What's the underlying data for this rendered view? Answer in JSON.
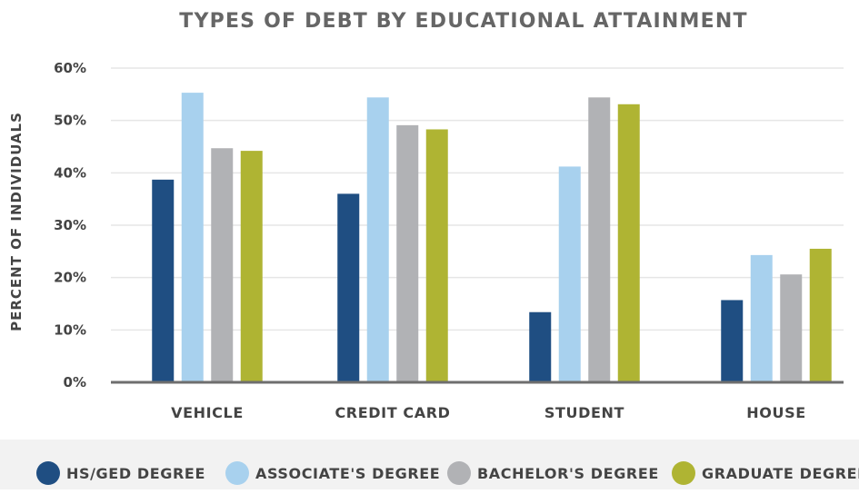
{
  "chart_data": {
    "type": "bar",
    "title": "TYPES OF DEBT BY EDUCATIONAL ATTAINMENT",
    "xlabel": "",
    "ylabel": "PERCENT OF INDIVIDUALS",
    "ylim": [
      0,
      60
    ],
    "yticks": [
      0,
      10,
      20,
      30,
      40,
      50,
      60
    ],
    "ytick_labels": [
      "0%",
      "10%",
      "20%",
      "30%",
      "40%",
      "50%",
      "60%"
    ],
    "grid": true,
    "legend_position": "bottom",
    "categories": [
      "VEHICLE",
      "CREDIT CARD",
      "STUDENT",
      "HOUSE"
    ],
    "series": [
      {
        "name": "HS/GED DEGREE",
        "color": "#1f4e82",
        "values": [
          38.7,
          36.0,
          13.4,
          15.7
        ]
      },
      {
        "name": "ASSOCIATE'S DEGREE",
        "color": "#a8d1ee",
        "values": [
          55.3,
          54.4,
          41.2,
          24.3
        ]
      },
      {
        "name": "BACHELOR'S DEGREE",
        "color": "#b1b2b5",
        "values": [
          44.7,
          49.1,
          54.4,
          20.6
        ]
      },
      {
        "name": "GRADUATE DEGREE",
        "color": "#afb433",
        "values": [
          44.2,
          48.3,
          53.1,
          25.5
        ]
      }
    ]
  },
  "colors": {
    "grid": "#e6e6e6",
    "baseline": "#6e6e6e",
    "legend_band": "#f2f2f2"
  }
}
